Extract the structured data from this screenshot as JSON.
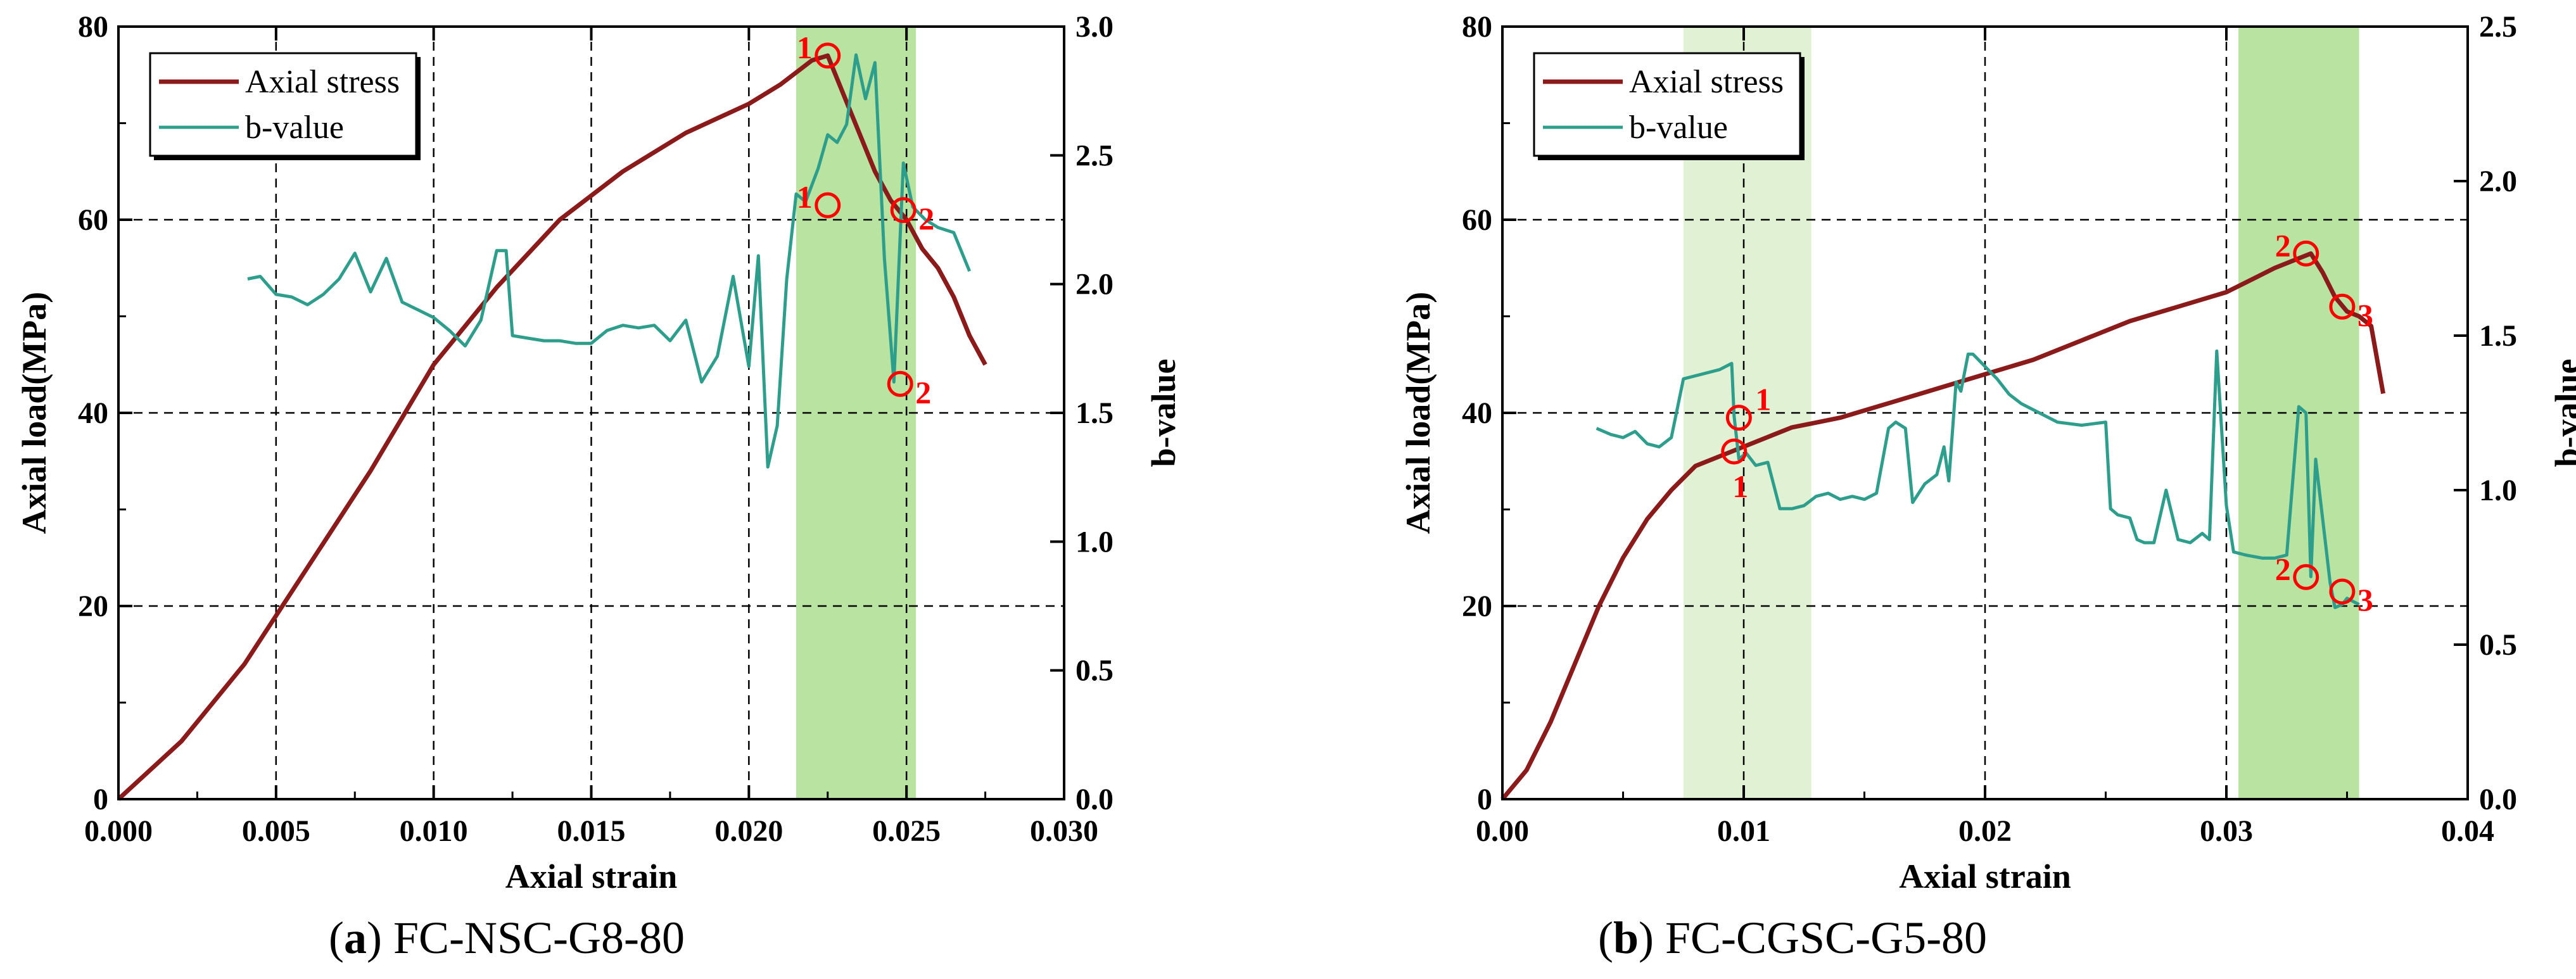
{
  "colors": {
    "stress": "#8b1a1a",
    "bvalue": "#2e9e8c",
    "marker": "#ff0000",
    "band_dark": "#b8e3a0",
    "band_light": "#e1f2d4",
    "grid": "#000000"
  },
  "chart_data": [
    {
      "type": "line",
      "panel_label": "a",
      "caption": "FC-NSC-G8-80",
      "xlabel": "Axial strain",
      "ylabel": "Axial load(MPa)",
      "y2label": "b-value",
      "xlim": [
        0,
        0.03
      ],
      "ylim": [
        0,
        80
      ],
      "y2lim": [
        0,
        3.0
      ],
      "xticks": [
        0,
        0.005,
        0.01,
        0.015,
        0.02,
        0.025,
        0.03
      ],
      "xtick_labels": [
        "0.000",
        "0.005",
        "0.010",
        "0.015",
        "0.020",
        "0.025",
        "0.030"
      ],
      "yticks": [
        0,
        20,
        40,
        60,
        80
      ],
      "ytick_labels": [
        "0",
        "20",
        "40",
        "60",
        "80"
      ],
      "y2ticks": [
        0,
        0.5,
        1.0,
        1.5,
        2.0,
        2.5,
        3.0
      ],
      "y2tick_labels": [
        "0.0",
        "0.5",
        "1.0",
        "1.5",
        "2.0",
        "2.5",
        "3.0"
      ],
      "legend": [
        "Axial stress",
        "b-value"
      ],
      "bands": [
        {
          "x0": 0.0215,
          "x1": 0.0253,
          "shade": "dark"
        }
      ],
      "series": [
        {
          "name": "Axial stress",
          "axis": "left",
          "x": [
            0,
            0.002,
            0.004,
            0.006,
            0.008,
            0.01,
            0.012,
            0.014,
            0.016,
            0.018,
            0.02,
            0.021,
            0.022,
            0.0225,
            0.023,
            0.0235,
            0.024,
            0.0245,
            0.025,
            0.0255,
            0.026,
            0.0265,
            0.027,
            0.0275
          ],
          "y": [
            0,
            6,
            14,
            24,
            34,
            45,
            53,
            60,
            65,
            69,
            72,
            74,
            76.5,
            77,
            73,
            69,
            65,
            62,
            60,
            57,
            55,
            52,
            48,
            45
          ]
        },
        {
          "name": "b-value",
          "axis": "right",
          "x": [
            0.0041,
            0.0045,
            0.005,
            0.0055,
            0.006,
            0.0065,
            0.007,
            0.0075,
            0.008,
            0.0085,
            0.009,
            0.0095,
            0.01,
            0.0105,
            0.011,
            0.0115,
            0.012,
            0.0123,
            0.0125,
            0.013,
            0.0135,
            0.014,
            0.0145,
            0.015,
            0.0155,
            0.016,
            0.0165,
            0.017,
            0.0175,
            0.018,
            0.0185,
            0.019,
            0.0195,
            0.02,
            0.0203,
            0.0206,
            0.0209,
            0.0212,
            0.0215,
            0.0218,
            0.0222,
            0.0225,
            0.0228,
            0.0231,
            0.0234,
            0.0237,
            0.024,
            0.0243,
            0.0246,
            0.0249,
            0.0252,
            0.0256,
            0.026,
            0.0265,
            0.027
          ],
          "y": [
            2.02,
            2.03,
            1.96,
            1.95,
            1.92,
            1.96,
            2.02,
            2.12,
            1.97,
            2.1,
            1.93,
            1.9,
            1.87,
            1.82,
            1.76,
            1.86,
            2.13,
            2.13,
            1.8,
            1.79,
            1.78,
            1.78,
            1.77,
            1.77,
            1.82,
            1.84,
            1.83,
            1.84,
            1.78,
            1.86,
            1.62,
            1.72,
            2.03,
            1.68,
            2.11,
            1.29,
            1.45,
            2.02,
            2.35,
            2.32,
            2.45,
            2.58,
            2.55,
            2.62,
            2.89,
            2.72,
            2.86,
            2.1,
            1.62,
            2.47,
            2.3,
            2.25,
            2.22,
            2.2,
            2.05
          ]
        }
      ],
      "markers": [
        {
          "x": 0.0225,
          "y": 77,
          "axis": "left",
          "label": "1",
          "label_side": "left"
        },
        {
          "x": 0.0225,
          "y": 61.5,
          "axis": "left",
          "label": "1",
          "label_side": "left"
        },
        {
          "x": 0.0249,
          "y": 61,
          "axis": "left",
          "label": "2",
          "label_side": "right"
        },
        {
          "x": 0.0248,
          "y": 43,
          "axis": "left",
          "label": "2",
          "label_side": "right"
        }
      ]
    },
    {
      "type": "line",
      "panel_label": "b",
      "caption": "FC-CGSC-G5-80",
      "xlabel": "Axial strain",
      "ylabel": "Axial load(MPa)",
      "y2label": "b-value",
      "xlim": [
        0,
        0.04
      ],
      "ylim": [
        0,
        80
      ],
      "y2lim": [
        0,
        2.5
      ],
      "xticks": [
        0,
        0.01,
        0.02,
        0.03,
        0.04
      ],
      "xtick_labels": [
        "0.00",
        "0.01",
        "0.02",
        "0.03",
        "0.04"
      ],
      "yticks": [
        0,
        20,
        40,
        60,
        80
      ],
      "ytick_labels": [
        "0",
        "20",
        "40",
        "60",
        "80"
      ],
      "y2ticks": [
        0,
        0.5,
        1.0,
        1.5,
        2.0,
        2.5
      ],
      "y2tick_labels": [
        "0.0",
        "0.5",
        "1.0",
        "1.5",
        "2.0",
        "2.5"
      ],
      "legend": [
        "Axial stress",
        "b-value"
      ],
      "bands": [
        {
          "x0": 0.0075,
          "x1": 0.0128,
          "shade": "light"
        },
        {
          "x0": 0.0305,
          "x1": 0.0355,
          "shade": "dark"
        }
      ],
      "series": [
        {
          "name": "Axial stress",
          "axis": "left",
          "x": [
            0,
            0.001,
            0.002,
            0.003,
            0.004,
            0.005,
            0.006,
            0.007,
            0.008,
            0.009,
            0.0095,
            0.01,
            0.011,
            0.012,
            0.013,
            0.014,
            0.016,
            0.018,
            0.02,
            0.022,
            0.024,
            0.026,
            0.028,
            0.03,
            0.032,
            0.033,
            0.0335,
            0.034,
            0.0345,
            0.035,
            0.0355,
            0.036,
            0.0365
          ],
          "y": [
            0,
            3,
            8,
            14,
            20,
            25,
            29,
            32,
            34.5,
            35.5,
            36,
            36.5,
            37.5,
            38.5,
            39,
            39.5,
            41,
            42.5,
            44,
            45.5,
            47.5,
            49.5,
            51,
            52.5,
            55,
            56,
            56.5,
            54.5,
            52,
            50.5,
            50,
            49,
            42
          ]
        },
        {
          "name": "b-value",
          "axis": "right",
          "x": [
            0.0039,
            0.0045,
            0.005,
            0.0055,
            0.006,
            0.0065,
            0.007,
            0.0075,
            0.008,
            0.0085,
            0.009,
            0.0095,
            0.0096,
            0.0098,
            0.0101,
            0.0105,
            0.011,
            0.0115,
            0.012,
            0.0125,
            0.013,
            0.0135,
            0.014,
            0.0145,
            0.015,
            0.0155,
            0.016,
            0.0163,
            0.0167,
            0.017,
            0.0175,
            0.018,
            0.0183,
            0.0185,
            0.0188,
            0.019,
            0.0193,
            0.0195,
            0.02,
            0.0205,
            0.021,
            0.0215,
            0.022,
            0.023,
            0.024,
            0.025,
            0.0252,
            0.0255,
            0.026,
            0.0263,
            0.0266,
            0.027,
            0.0275,
            0.028,
            0.0285,
            0.029,
            0.0293,
            0.0296,
            0.03,
            0.0303,
            0.0308,
            0.0315,
            0.032,
            0.0325,
            0.033,
            0.0333,
            0.0335,
            0.0337,
            0.034,
            0.0343,
            0.0345,
            0.0348,
            0.035,
            0.0355
          ],
          "y": [
            1.2,
            1.18,
            1.17,
            1.19,
            1.15,
            1.14,
            1.17,
            1.36,
            1.37,
            1.38,
            1.39,
            1.41,
            1.24,
            1.1,
            1.12,
            1.08,
            1.09,
            0.94,
            0.94,
            0.95,
            0.98,
            0.99,
            0.97,
            0.98,
            0.97,
            0.99,
            1.2,
            1.22,
            1.2,
            0.96,
            1.02,
            1.05,
            1.14,
            1.03,
            1.35,
            1.32,
            1.44,
            1.44,
            1.4,
            1.36,
            1.31,
            1.28,
            1.26,
            1.22,
            1.21,
            1.22,
            0.94,
            0.92,
            0.91,
            0.84,
            0.83,
            0.83,
            1.0,
            0.84,
            0.83,
            0.86,
            0.84,
            1.45,
            0.95,
            0.8,
            0.79,
            0.78,
            0.78,
            0.79,
            1.27,
            1.25,
            0.72,
            1.1,
            0.9,
            0.7,
            0.62,
            0.63,
            0.65,
            0.63
          ]
        }
      ],
      "markers": [
        {
          "x": 0.0096,
          "y": 36,
          "axis": "left",
          "label": "1",
          "label_side": "below"
        },
        {
          "x": 0.0098,
          "y": 39.5,
          "axis": "left",
          "label": "1",
          "label_side": "above-right"
        },
        {
          "x": 0.0333,
          "y": 56.5,
          "axis": "left",
          "label": "2",
          "label_side": "left"
        },
        {
          "x": 0.0348,
          "y": 51,
          "axis": "left",
          "label": "3",
          "label_side": "right"
        },
        {
          "x": 0.0333,
          "y": 23,
          "axis": "left",
          "label": "2",
          "label_side": "left"
        },
        {
          "x": 0.0348,
          "y": 21.5,
          "axis": "left",
          "label": "3",
          "label_side": "right"
        }
      ]
    }
  ]
}
